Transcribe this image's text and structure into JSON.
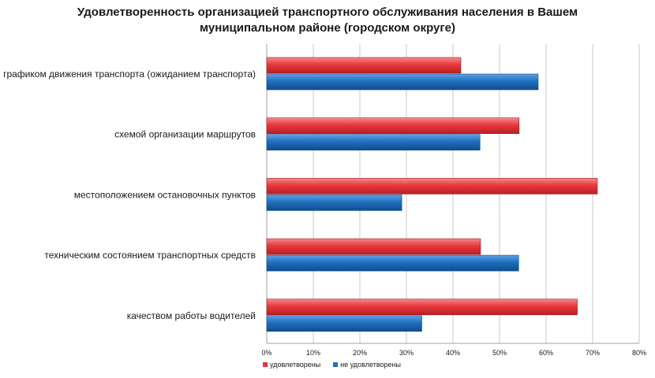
{
  "chart_data": {
    "type": "bar",
    "orientation": "horizontal",
    "title_lines": [
      "Удовлетворенность организацией транспортного обслуживания  населения в Вашем",
      "муниципальном районе (городском округе)"
    ],
    "categories": [
      "графиком движения транспорта (ожиданием транспорта)",
      "схемой организации маршрутов",
      "местоположением остановочных пунктов",
      "техническим состоянием транспортных средств",
      "качеством работы водителей"
    ],
    "series": [
      {
        "name": "удовлетворены",
        "color": "#e8383d",
        "values": [
          41.7,
          54.2,
          71.0,
          45.9,
          66.7
        ]
      },
      {
        "name": "не удовлетворены",
        "color": "#1f6fc0",
        "values": [
          58.3,
          45.8,
          29.0,
          54.1,
          33.3
        ]
      }
    ],
    "xlim": [
      0,
      80
    ],
    "xticks": [
      0,
      10,
      20,
      30,
      40,
      50,
      60,
      70,
      80
    ],
    "tick_suffix": "%",
    "grid": true,
    "legend_position": "bottom"
  }
}
